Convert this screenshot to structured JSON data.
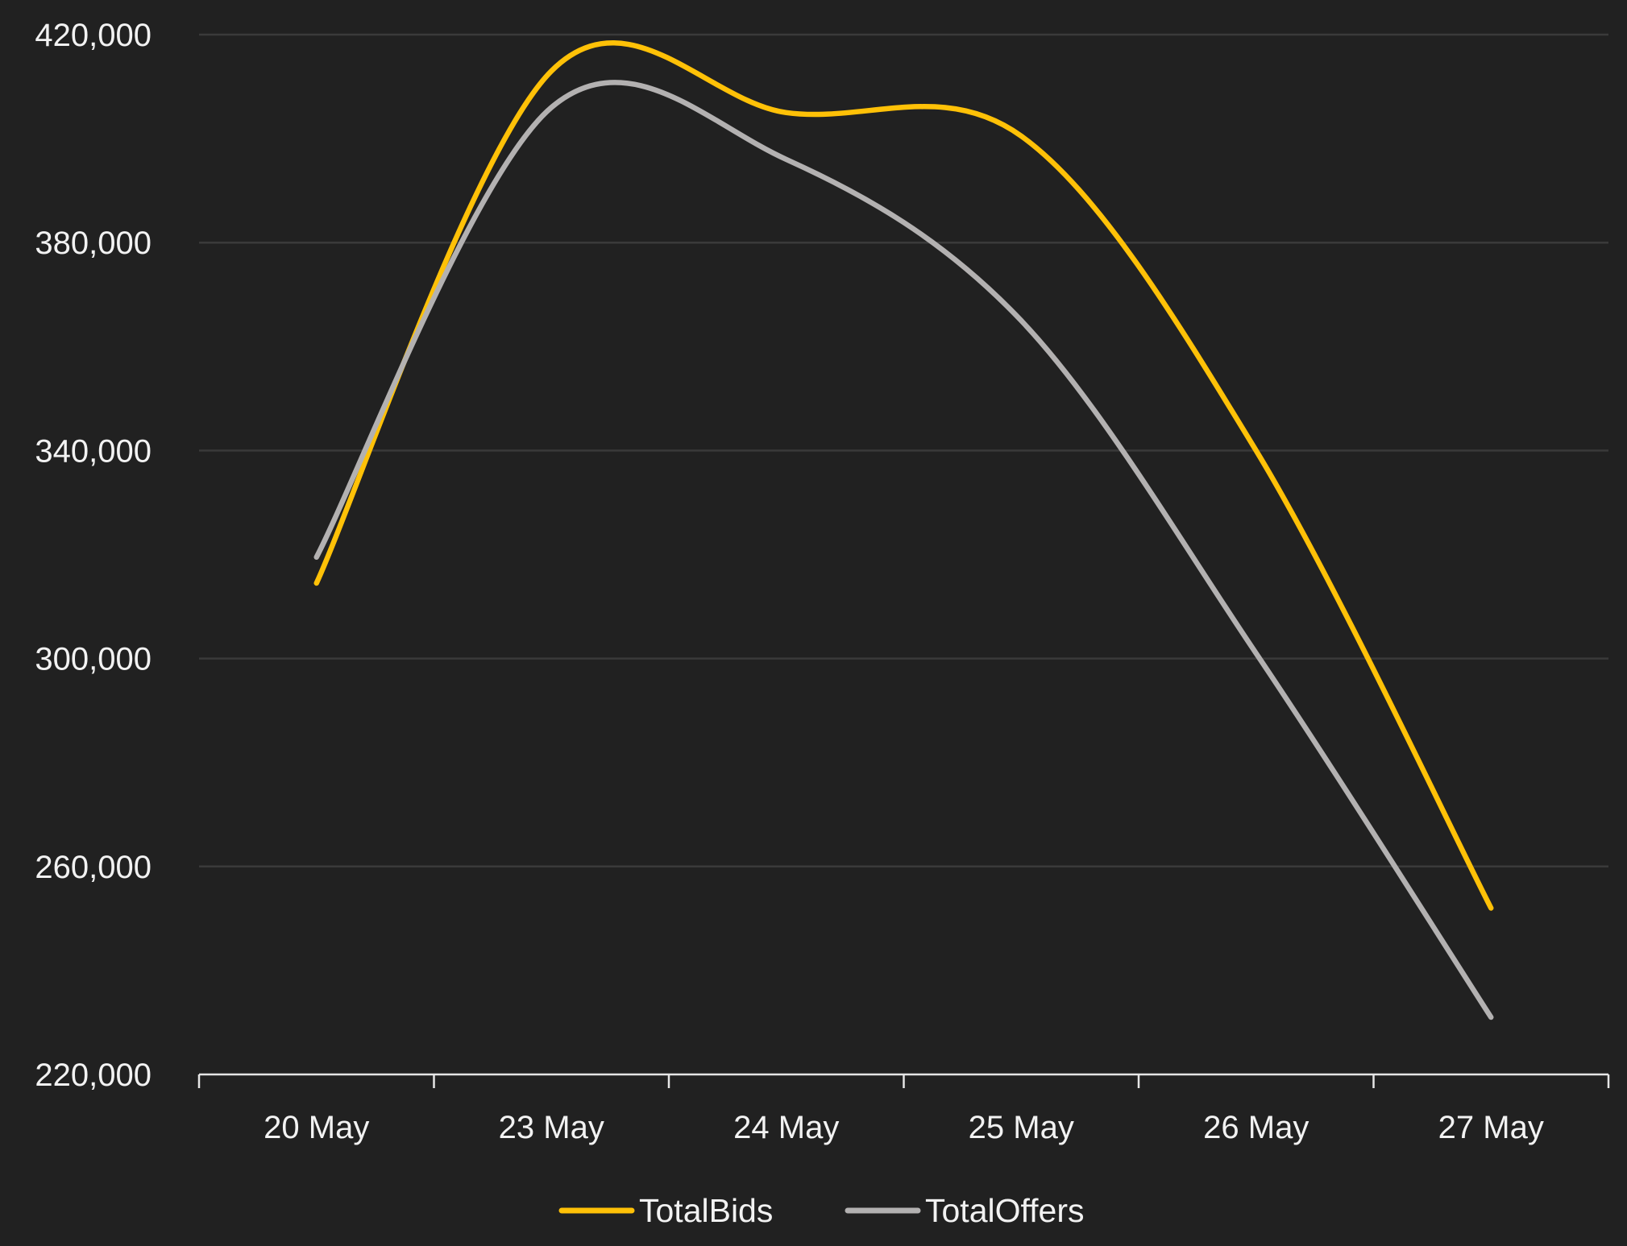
{
  "chart_data": {
    "type": "line",
    "title": "",
    "xlabel": "",
    "ylabel": "",
    "categories": [
      "20 May",
      "23 May",
      "24 May",
      "25 May",
      "26 May",
      "27 May"
    ],
    "series": [
      {
        "name": "TotalBids",
        "color": "#FFC107",
        "values": [
          314500,
          413000,
          405000,
          400500,
          340000,
          252000
        ]
      },
      {
        "name": "TotalOffers",
        "color": "#B3B1B1",
        "values": [
          319500,
          406000,
          396000,
          365000,
          301000,
          231000
        ]
      }
    ],
    "ylim": [
      220000,
      420000
    ],
    "yticks": [
      {
        "value": 220000,
        "label": "220,000"
      },
      {
        "value": 260000,
        "label": "260,000"
      },
      {
        "value": 300000,
        "label": "300,000"
      },
      {
        "value": 340000,
        "label": "340,000"
      },
      {
        "value": 380000,
        "label": "380,000"
      },
      {
        "value": 420000,
        "label": "420,000"
      }
    ],
    "grid": true,
    "smooth": true,
    "legend_position": "bottom-center",
    "colors": {
      "background": "#212121",
      "grid": "#3a3a3a",
      "axis": "#e6e6e6",
      "text": "#f2f2f2"
    }
  }
}
